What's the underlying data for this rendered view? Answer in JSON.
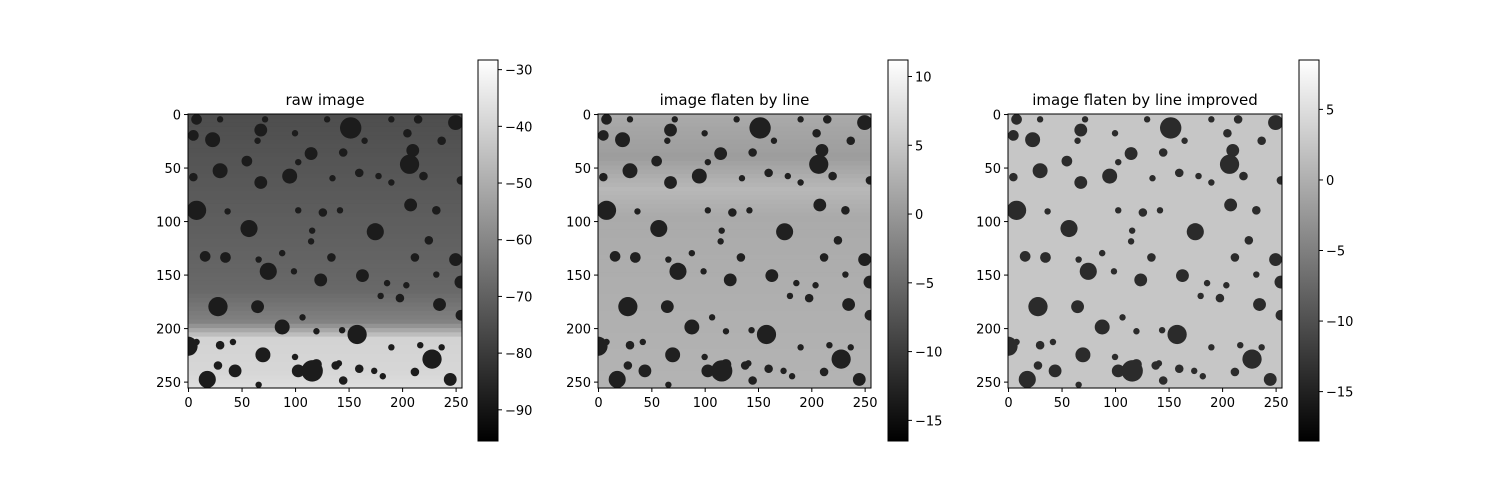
{
  "chart_data": [
    {
      "type": "heatmap",
      "title": "raw image",
      "colormap": "gray",
      "image_size": [
        256,
        256
      ],
      "xlim": [
        0,
        255
      ],
      "ylim": [
        255,
        0
      ],
      "xticks": [
        0,
        50,
        100,
        150,
        200,
        250
      ],
      "yticks": [
        0,
        50,
        100,
        150,
        200,
        250
      ],
      "colorbar": {
        "range": [
          -95.5,
          -28.3
        ],
        "ticks": [
          -30,
          -40,
          -50,
          -60,
          -70,
          -80,
          -90
        ]
      },
      "background": {
        "rows": [
          0,
          165,
          195,
          210,
          240,
          256
        ],
        "values": [
          -75,
          -68,
          -61,
          -40,
          -39,
          -37
        ]
      },
      "spot_value": -88
    },
    {
      "type": "heatmap",
      "title": "image flaten by line",
      "colormap": "gray",
      "image_size": [
        256,
        256
      ],
      "xlim": [
        0,
        255
      ],
      "ylim": [
        255,
        0
      ],
      "xticks": [
        0,
        50,
        100,
        150,
        200,
        250
      ],
      "yticks": [
        0,
        50,
        100,
        150,
        200,
        250
      ],
      "colorbar": {
        "range": [
          -16.5,
          11.2
        ],
        "ticks": [
          10,
          5,
          0,
          -5,
          -10,
          -15
        ]
      },
      "background": {
        "rows": [
          0,
          40,
          70,
          95,
          256
        ],
        "values": [
          2,
          0.5,
          3.5,
          2,
          3
        ]
      },
      "spot_value": -13
    },
    {
      "type": "heatmap",
      "title": "image flaten by line improved",
      "colormap": "gray",
      "image_size": [
        256,
        256
      ],
      "xlim": [
        0,
        255
      ],
      "ylim": [
        255,
        0
      ],
      "xticks": [
        0,
        50,
        100,
        150,
        200,
        250
      ],
      "yticks": [
        0,
        50,
        100,
        150,
        200,
        250
      ],
      "colorbar": {
        "range": [
          -18.5,
          8.5
        ],
        "ticks": [
          5,
          0,
          -5,
          -10,
          -15
        ]
      },
      "background": {
        "rows": [
          0,
          256
        ],
        "values": [
          2.5,
          2.5
        ]
      },
      "spot_value": -14
    }
  ],
  "spots": [
    [
      8,
      5,
      5
    ],
    [
      30,
      5,
      3
    ],
    [
      72,
      5,
      3
    ],
    [
      130,
      5,
      3
    ],
    [
      190,
      5,
      3
    ],
    [
      215,
      5,
      4
    ],
    [
      5,
      20,
      5
    ],
    [
      68,
      15,
      6
    ],
    [
      100,
      18,
      3
    ],
    [
      152,
      13,
      10
    ],
    [
      205,
      18,
      4
    ],
    [
      250,
      8,
      7
    ],
    [
      23,
      24,
      7
    ],
    [
      65,
      25,
      3
    ],
    [
      165,
      25,
      3
    ],
    [
      237,
      25,
      4
    ],
    [
      115,
      37,
      6
    ],
    [
      145,
      36,
      4
    ],
    [
      210,
      34,
      6
    ],
    [
      55,
      44,
      5
    ],
    [
      103,
      45,
      3
    ],
    [
      207,
      47,
      9
    ],
    [
      30,
      53,
      7
    ],
    [
      160,
      55,
      4
    ],
    [
      178,
      58,
      3
    ],
    [
      220,
      58,
      4
    ],
    [
      5,
      59,
      4
    ],
    [
      95,
      58,
      7
    ],
    [
      135,
      60,
      3
    ],
    [
      68,
      64,
      6
    ],
    [
      190,
      64,
      3
    ],
    [
      255,
      62,
      4
    ],
    [
      8,
      90,
      9
    ],
    [
      37,
      91,
      3
    ],
    [
      103,
      90,
      3
    ],
    [
      126,
      92,
      4
    ],
    [
      142,
      90,
      3
    ],
    [
      208,
      85,
      6
    ],
    [
      232,
      90,
      4
    ],
    [
      57,
      107,
      8
    ],
    [
      116,
      109,
      3
    ],
    [
      175,
      110,
      8
    ],
    [
      115,
      119,
      3
    ],
    [
      225,
      118,
      4
    ],
    [
      16,
      133,
      5
    ],
    [
      35,
      134,
      5
    ],
    [
      66,
      136,
      3
    ],
    [
      88,
      130,
      3
    ],
    [
      134,
      134,
      4
    ],
    [
      212,
      134,
      4
    ],
    [
      250,
      136,
      6
    ],
    [
      75,
      147,
      8
    ],
    [
      99,
      147,
      3
    ],
    [
      163,
      151,
      6
    ],
    [
      232,
      150,
      3
    ],
    [
      124,
      155,
      6
    ],
    [
      186,
      158,
      3
    ],
    [
      204,
      160,
      3
    ],
    [
      255,
      157,
      6
    ],
    [
      28,
      180,
      9
    ],
    [
      180,
      170,
      3
    ],
    [
      198,
      172,
      4
    ],
    [
      65,
      180,
      6
    ],
    [
      235,
      178,
      6
    ],
    [
      107,
      190,
      3
    ],
    [
      255,
      188,
      5
    ],
    [
      88,
      199,
      7
    ],
    [
      144,
      202,
      3
    ],
    [
      120,
      203,
      3
    ],
    [
      158,
      206,
      9
    ],
    [
      8,
      213,
      3
    ],
    [
      42,
      213,
      3
    ],
    [
      217,
      216,
      3
    ],
    [
      30,
      216,
      4
    ],
    [
      100,
      227,
      3
    ],
    [
      190,
      218,
      3
    ],
    [
      0,
      217,
      9
    ],
    [
      237,
      218,
      3
    ],
    [
      70,
      225,
      7
    ],
    [
      120,
      234,
      5
    ],
    [
      28,
      235,
      4
    ],
    [
      228,
      229,
      9
    ],
    [
      141,
      233,
      3
    ],
    [
      160,
      238,
      4
    ],
    [
      103,
      240,
      6
    ],
    [
      44,
      240,
      6
    ],
    [
      174,
      240,
      3
    ],
    [
      138,
      235,
      4
    ],
    [
      212,
      241,
      4
    ],
    [
      116,
      240,
      10
    ],
    [
      18,
      248,
      8
    ],
    [
      182,
      245,
      3
    ],
    [
      245,
      248,
      6
    ],
    [
      66,
      253,
      3
    ],
    [
      145,
      249,
      4
    ]
  ]
}
